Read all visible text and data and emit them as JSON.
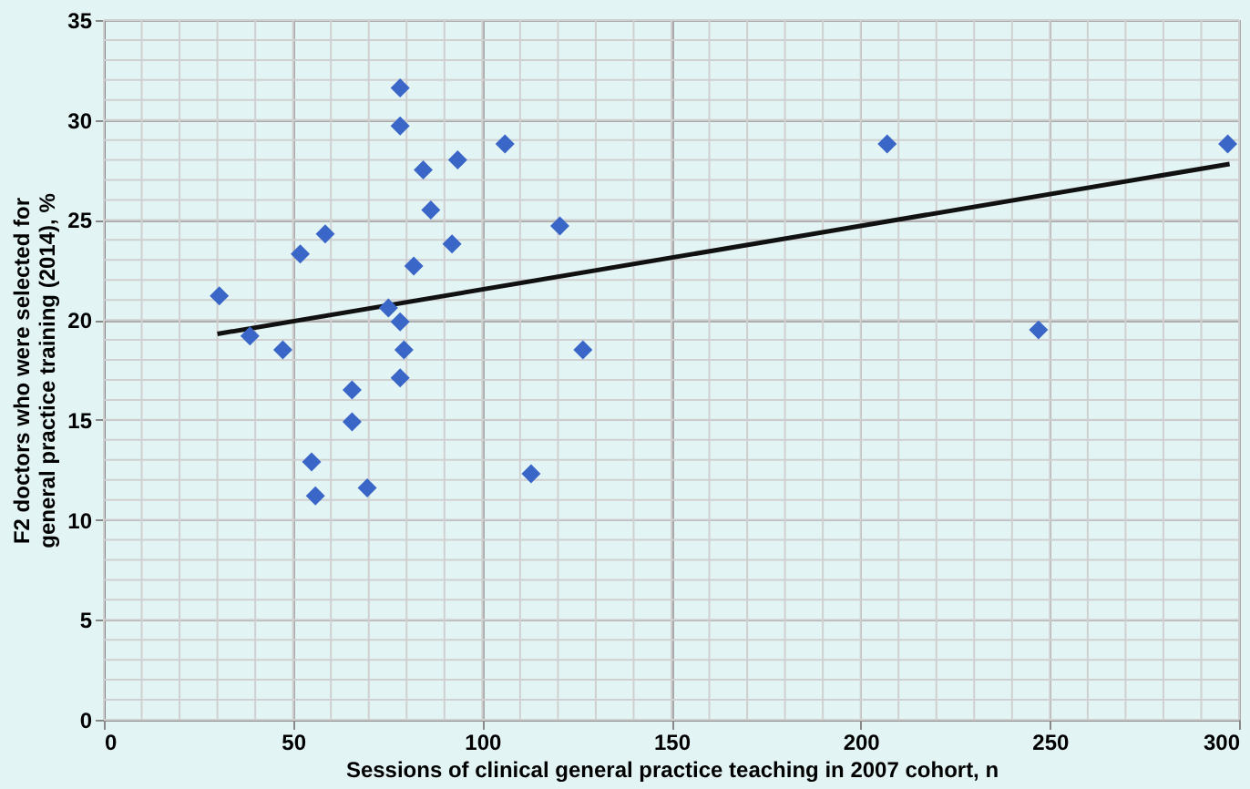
{
  "chart_data": {
    "type": "scatter",
    "xlabel": "Sessions of clinical general practice teaching in 2007 cohort, n",
    "ylabel": "F2 doctors who were selected for general practice training (2014), %",
    "xlim": [
      0,
      300
    ],
    "ylim": [
      0,
      35
    ],
    "xticks": [
      0,
      50,
      100,
      150,
      200,
      250,
      300
    ],
    "yticks": [
      0,
      5,
      10,
      15,
      20,
      25,
      30,
      35
    ],
    "grid": true,
    "marker": "diamond",
    "series": [
      {
        "color": "#3a66c8",
        "x": [
          30.5,
          38.6,
          47.3,
          51.9,
          58.5,
          54.9,
          55.9,
          65.6,
          65.6,
          69.6,
          78.3,
          78.3,
          84.4,
          93.5,
          86.4,
          92,
          81.9,
          75.2,
          78.3,
          79.3,
          78.3,
          106,
          120.5,
          126.6,
          112.9,
          207,
          247,
          297
        ],
        "values": [
          21.2,
          19.2,
          18.5,
          23.3,
          24.3,
          12.9,
          11.2,
          16.5,
          14.9,
          11.6,
          31.6,
          29.7,
          27.5,
          28.0,
          25.5,
          23.8,
          22.7,
          20.6,
          19.9,
          18.5,
          17.1,
          28.8,
          24.7,
          18.5,
          12.3,
          28.8,
          19.5,
          28.8
        ]
      },
      {
        "type": "line",
        "color": "#111111",
        "x": [
          30,
          297.5
        ],
        "values": [
          19.3,
          27.8
        ],
        "marker": "none",
        "line_style": "solid"
      }
    ]
  }
}
